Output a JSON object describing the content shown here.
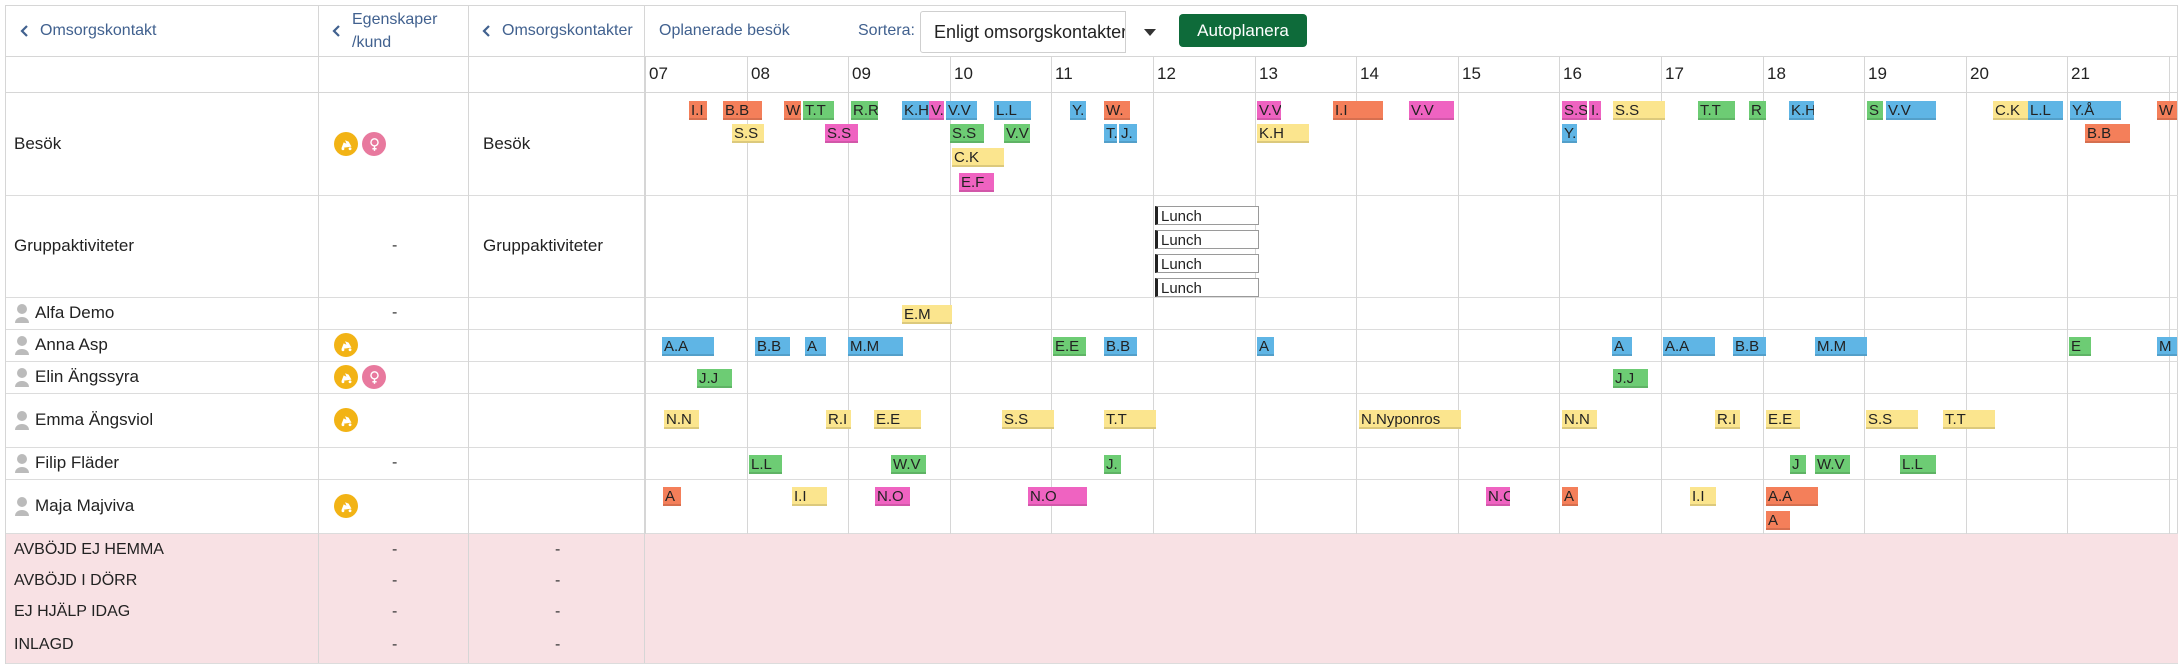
{
  "header": {
    "col1_label": "Omsorgskontakt",
    "col2_label_line1": "Egenskaper",
    "col2_label_line2": "/kund",
    "col3_label": "Omsorgskontakter",
    "unplanned_label": "Oplanerade besök",
    "sort_label": "Sortera:",
    "sort_value": "Enligt omsorgskontakter",
    "autoplan_label": "Autoplanera"
  },
  "hours": [
    "07",
    "08",
    "09",
    "10",
    "11",
    "12",
    "13",
    "14",
    "15",
    "16",
    "17",
    "18",
    "19",
    "20",
    "21"
  ],
  "rows": [
    {
      "label": "Besök",
      "col3": "Besök"
    },
    {
      "label": "Gruppaktiviteter",
      "col2": "-",
      "col3": "Gruppaktiviteter"
    },
    {
      "label": "Alfa Demo",
      "col2": "-"
    },
    {
      "label": "Anna Asp"
    },
    {
      "label": "Elin Ängssyra"
    },
    {
      "label": "Emma Ängsviol"
    },
    {
      "label": "Filip Fläder",
      "col2": "-"
    },
    {
      "label": "Maja Majviva"
    }
  ],
  "status_rows": [
    {
      "label": "AVBÖJD EJ HEMMA",
      "col2": "-",
      "col3": "-"
    },
    {
      "label": "AVBÖJD I DÖRR",
      "col2": "-",
      "col3": "-"
    },
    {
      "label": "EJ HJÄLP IDAG",
      "col2": "-",
      "col3": "-"
    },
    {
      "label": "INLAGD",
      "col2": "-",
      "col3": "-"
    }
  ],
  "lunch": {
    "label": "Lunch"
  },
  "chips": {
    "besok": [
      "I.I",
      "B.B",
      "W.",
      "T.T",
      "R.R",
      "K.H",
      "V.",
      "V.V",
      "L.L",
      "Y.",
      "W.",
      "V.V",
      "I.I",
      "V.V",
      "S.S",
      "I.",
      "S.S",
      "T.T",
      "R",
      "K.H",
      "S",
      "V.V",
      "C.K",
      "L.L",
      "Y.Å",
      "W",
      "S.S",
      "S.S",
      "S.S",
      "V.V",
      "T.",
      "J.",
      "K.H",
      "Y.",
      "B.B",
      "C.K",
      "E.F"
    ],
    "alfa": [
      "E.M"
    ],
    "anna": [
      "A.A",
      "B.B",
      "A",
      "M.M",
      "E.E",
      "B.B",
      "A",
      "A",
      "A.A",
      "B.B",
      "M.M",
      "E",
      "M"
    ],
    "elin": [
      "J.J",
      "J.J"
    ],
    "emma": [
      "N.N",
      "R.I",
      "E.E",
      "S.S",
      "T.T",
      "N.Nyponros",
      "N.N",
      "R.I",
      "E.E",
      "S.S",
      "T.T"
    ],
    "filip": [
      "L.L",
      "W.V",
      "J.",
      "J",
      "W.V",
      "L.L"
    ],
    "maja": [
      "A",
      "I.I",
      "N.O",
      "N.O",
      "N.C",
      "A",
      "I.I",
      "A.A",
      "A"
    ]
  },
  "icon_colors": {
    "vehicle": "#f2b315",
    "female": "#e8799e"
  }
}
